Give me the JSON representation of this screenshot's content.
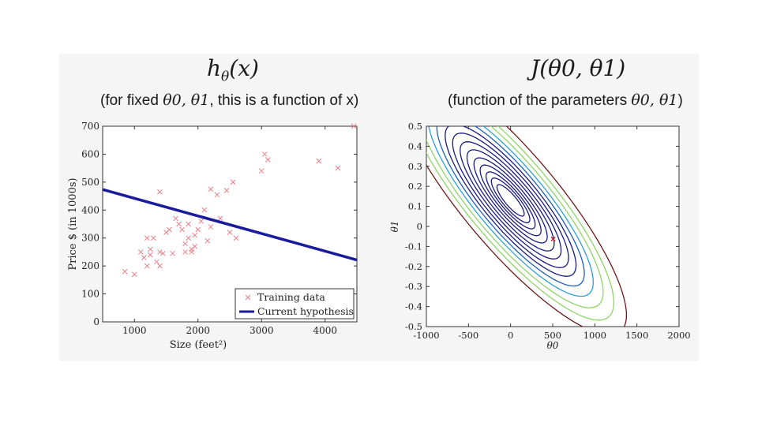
{
  "left": {
    "heading": "h_θ(x)",
    "heading_main": "h",
    "heading_sub": "θ",
    "heading_arg": "(x)",
    "subtitle_pre": "(for fixed ",
    "subtitle_params": "θ0, θ1",
    "subtitle_post": ", this is a function of x)"
  },
  "right": {
    "heading": "J(θ0, θ1)",
    "subtitle_pre": "(function of the parameters ",
    "subtitle_params": "θ0, θ1",
    "subtitle_post": ")"
  },
  "chart_data": [
    {
      "type": "scatter",
      "title": "h_θ(x)",
      "xlabel": "Size (feet²)",
      "ylabel": "Price $ (in 1000s)",
      "xlim": [
        500,
        4500
      ],
      "ylim": [
        0,
        700
      ],
      "x_ticks": [
        "1000",
        "2000",
        "3000",
        "4000"
      ],
      "x_tick_values": [
        1000,
        2000,
        3000,
        4000
      ],
      "y_ticks": [
        "0",
        "100",
        "200",
        "300",
        "400",
        "500",
        "600",
        "700"
      ],
      "y_tick_values": [
        0,
        100,
        200,
        300,
        400,
        500,
        600,
        700
      ],
      "series": [
        {
          "name": "Training data",
          "marker": "x",
          "color": "#e8808a",
          "points": [
            [
              850,
              180
            ],
            [
              1000,
              170
            ],
            [
              1100,
              250
            ],
            [
              1150,
              230
            ],
            [
              1200,
              300
            ],
            [
              1200,
              200
            ],
            [
              1250,
              240
            ],
            [
              1250,
              260
            ],
            [
              1300,
              300
            ],
            [
              1350,
              215
            ],
            [
              1400,
              250
            ],
            [
              1400,
              200
            ],
            [
              1400,
              465
            ],
            [
              1450,
              245
            ],
            [
              1500,
              320
            ],
            [
              1550,
              330
            ],
            [
              1600,
              245
            ],
            [
              1650,
              370
            ],
            [
              1700,
              350
            ],
            [
              1750,
              330
            ],
            [
              1800,
              250
            ],
            [
              1800,
              280
            ],
            [
              1850,
              300
            ],
            [
              1850,
              350
            ],
            [
              1900,
              260
            ],
            [
              1900,
              250
            ],
            [
              1950,
              270
            ],
            [
              1950,
              310
            ],
            [
              2000,
              330
            ],
            [
              2050,
              360
            ],
            [
              2100,
              400
            ],
            [
              2150,
              290
            ],
            [
              2200,
              475
            ],
            [
              2200,
              340
            ],
            [
              2300,
              455
            ],
            [
              2350,
              370
            ],
            [
              2450,
              470
            ],
            [
              2500,
              320
            ],
            [
              2550,
              500
            ],
            [
              2600,
              300
            ],
            [
              3000,
              540
            ],
            [
              3050,
              600
            ],
            [
              3100,
              580
            ],
            [
              3900,
              575
            ],
            [
              4200,
              550
            ],
            [
              4450,
              700
            ]
          ]
        },
        {
          "name": "Current hypothesis",
          "type": "line",
          "color": "#1a1a9c",
          "theta0": 505,
          "theta1": -0.063
        }
      ],
      "legend": "bottom-right"
    },
    {
      "type": "contour",
      "title": "J(θ0, θ1)",
      "xlabel": "θ0",
      "ylabel": "θ1",
      "xlim": [
        -1000,
        2000
      ],
      "ylim": [
        -0.5,
        0.5
      ],
      "x_ticks": [
        "-1000",
        "-500",
        "0",
        "500",
        "1000",
        "1500",
        "2000"
      ],
      "x_tick_values": [
        -1000,
        -500,
        0,
        500,
        1000,
        1500,
        2000
      ],
      "y_ticks": [
        "-0.5",
        "-0.4",
        "-0.3",
        "-0.2",
        "-0.1",
        "0",
        "0.1",
        "0.2",
        "0.3",
        "0.4",
        "0.5"
      ],
      "y_tick_values": [
        -0.5,
        -0.4,
        -0.3,
        -0.2,
        -0.1,
        0,
        0.1,
        0.2,
        0.3,
        0.4,
        0.5
      ],
      "center": [
        0,
        0.13
      ],
      "marker_point": {
        "theta0": 505,
        "theta1": -0.063,
        "color": "#cc2222"
      },
      "levels": [
        {
          "k": 0.08,
          "color": "#1a1a80"
        },
        {
          "k": 0.16,
          "color": "#1a1a80"
        },
        {
          "k": 0.26,
          "color": "#1a1a80"
        },
        {
          "k": 0.4,
          "color": "#1a1a80"
        },
        {
          "k": 0.58,
          "color": "#1a1a80"
        },
        {
          "k": 0.82,
          "color": "#1a1a80"
        },
        {
          "k": 1.1,
          "color": "#1a1a80"
        },
        {
          "k": 1.45,
          "color": "#1a1a80"
        },
        {
          "k": 1.85,
          "color": "#1a1a80"
        },
        {
          "k": 2.35,
          "color": "#1e5fb8"
        },
        {
          "k": 2.95,
          "color": "#2aa0d8"
        },
        {
          "k": 3.7,
          "color": "#8fd468"
        },
        {
          "k": 4.6,
          "color": "#8fd468"
        },
        {
          "k": 5.8,
          "color": "#6b1a1a"
        }
      ]
    }
  ]
}
